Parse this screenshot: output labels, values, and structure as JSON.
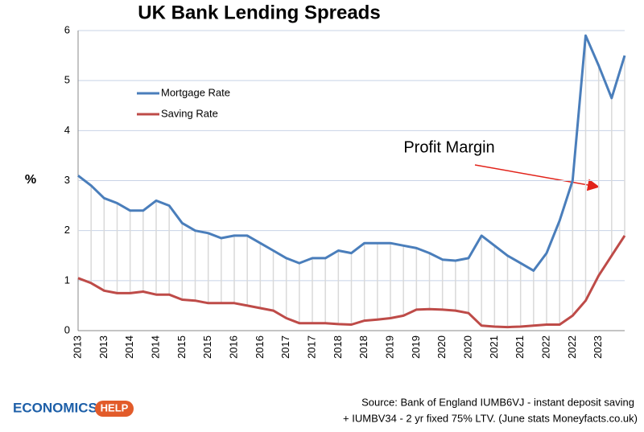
{
  "chart_data": {
    "type": "line",
    "title": "UK Bank Lending Spreads",
    "y_label": "%",
    "categories": [
      "2013",
      null,
      "2013",
      null,
      "2014",
      null,
      "2014",
      null,
      "2015",
      null,
      "2015",
      null,
      "2016",
      null,
      "2016",
      null,
      "2017",
      null,
      "2017",
      null,
      "2018",
      null,
      "2018",
      null,
      "2019",
      null,
      "2019",
      null,
      "2020",
      null,
      "2020",
      null,
      "2021",
      null,
      "2021",
      null,
      "2022",
      null,
      "2022",
      null,
      "2023",
      null,
      null
    ],
    "series": [
      {
        "name": "Mortgage Rate",
        "color": "#4a7ebb",
        "values": [
          3.1,
          2.9,
          2.65,
          2.55,
          2.4,
          2.4,
          2.6,
          2.5,
          2.15,
          2.0,
          1.95,
          1.85,
          1.9,
          1.9,
          1.75,
          1.6,
          1.45,
          1.35,
          1.45,
          1.45,
          1.6,
          1.55,
          1.75,
          1.75,
          1.75,
          1.7,
          1.65,
          1.55,
          1.42,
          1.4,
          1.45,
          1.9,
          1.7,
          1.5,
          1.35,
          1.2,
          1.55,
          2.2,
          3.0,
          5.9,
          5.3,
          4.65,
          5.5
        ]
      },
      {
        "name": "Saving Rate",
        "color": "#be4b48",
        "values": [
          1.05,
          0.95,
          0.8,
          0.75,
          0.75,
          0.78,
          0.72,
          0.72,
          0.62,
          0.6,
          0.55,
          0.55,
          0.55,
          0.5,
          0.45,
          0.4,
          0.25,
          0.15,
          0.15,
          0.15,
          0.13,
          0.12,
          0.2,
          0.22,
          0.25,
          0.3,
          0.42,
          0.43,
          0.42,
          0.4,
          0.35,
          0.1,
          0.08,
          0.07,
          0.08,
          0.1,
          0.12,
          0.12,
          0.3,
          0.6,
          1.1,
          1.5,
          1.9
        ]
      }
    ],
    "ylim": [
      0,
      6
    ],
    "yticks": [
      0,
      1,
      2,
      3,
      4,
      5,
      6
    ],
    "grid": true,
    "annotation": "Profit Margin",
    "source": [
      "Source: Bank of England IUMB6VJ - instant deposit saving",
      "+ IUMBV34 - 2 yr fixed 75% LTV. (June stats Moneyfacts.co.uk)"
    ],
    "logo": [
      "ECONOMICS",
      "HELP"
    ]
  }
}
